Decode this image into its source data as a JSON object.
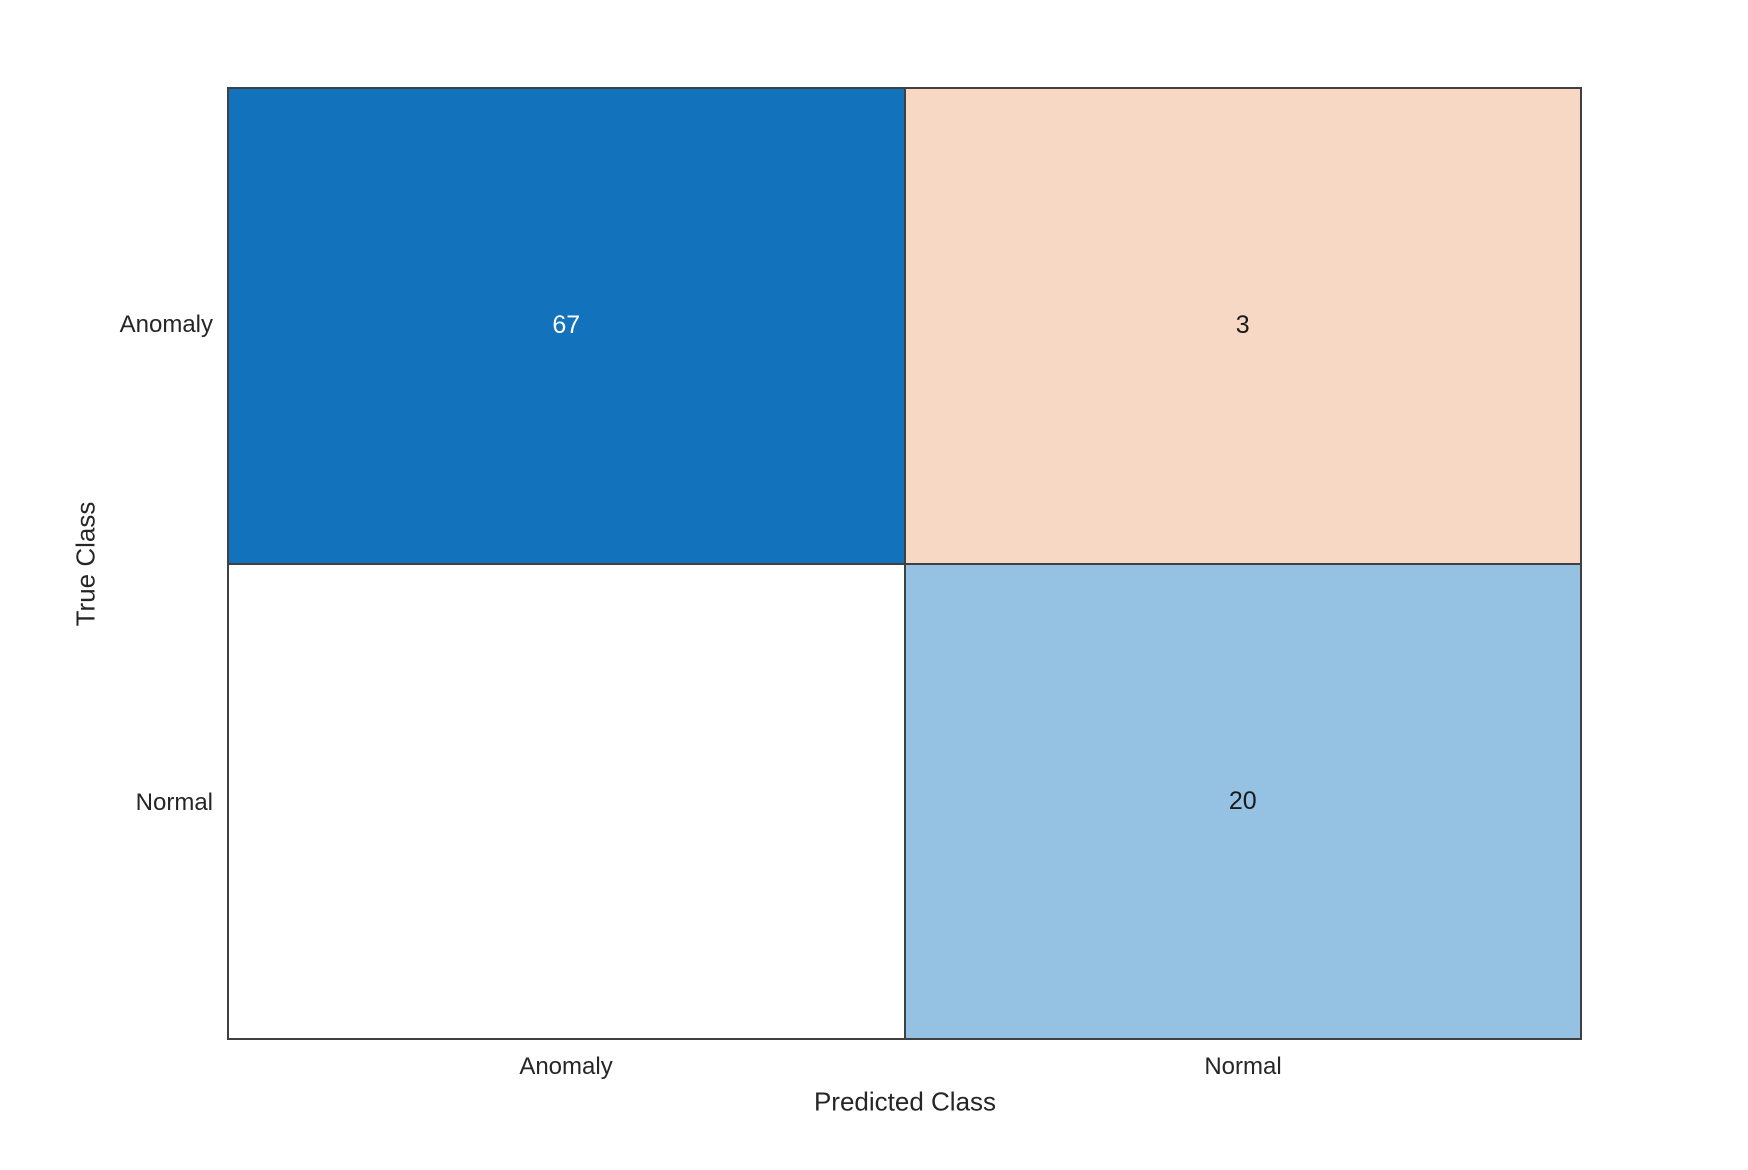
{
  "chart_data": {
    "type": "heatmap",
    "subtype": "confusion-matrix",
    "title": "",
    "xlabel": "Predicted Class",
    "ylabel": "True Class",
    "x_categories": [
      "Anomaly",
      "Normal"
    ],
    "y_categories": [
      "Anomaly",
      "Normal"
    ],
    "matrix": [
      [
        67,
        3
      ],
      [
        0,
        20
      ]
    ],
    "display": [
      [
        "67",
        "3"
      ],
      [
        "",
        "20"
      ]
    ],
    "cell_colors": [
      [
        "#1372bc",
        "#f6d8c4"
      ],
      [
        "#ffffff",
        "#95c2e3"
      ]
    ],
    "cell_text_colors": [
      [
        "#ffffff",
        "#1a1a1a"
      ],
      [
        "#1a1a1a",
        "#1a1a1a"
      ]
    ],
    "grid_color": "#404040",
    "axis_text_color": "#262626",
    "background_color": "#ffffff",
    "legend": "none",
    "grid": "on"
  }
}
